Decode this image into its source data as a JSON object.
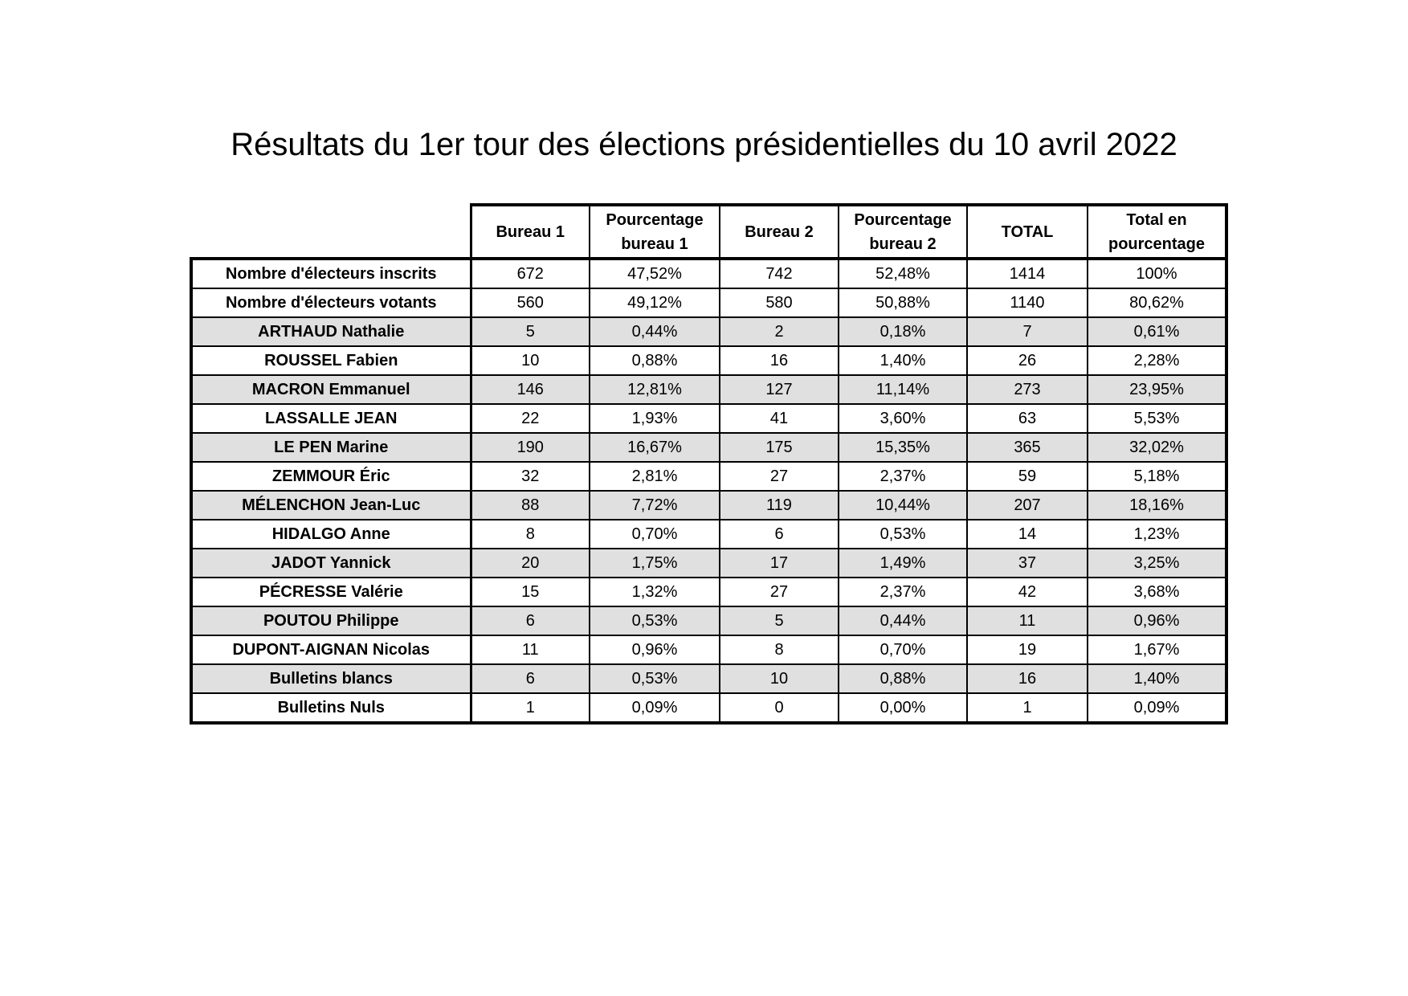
{
  "title": "Résultats du 1er tour des élections présidentielles du 10 avril 2022",
  "table": {
    "header": [
      "Bureau 1",
      "Pourcentage bureau 1",
      "Bureau 2",
      "Pourcentage bureau 2",
      "TOTAL",
      "Total en pourcentage"
    ],
    "rows": [
      [
        "Nombre d'électeurs inscrits",
        "672",
        "47,52%",
        "742",
        "52,48%",
        "1414",
        "100%"
      ],
      [
        "Nombre d'électeurs votants",
        "560",
        "49,12%",
        "580",
        "50,88%",
        "1140",
        "80,62%"
      ],
      [
        "ARTHAUD Nathalie",
        "5",
        "0,44%",
        "2",
        "0,18%",
        "7",
        "0,61%"
      ],
      [
        "ROUSSEL Fabien",
        "10",
        "0,88%",
        "16",
        "1,40%",
        "26",
        "2,28%"
      ],
      [
        "MACRON Emmanuel",
        "146",
        "12,81%",
        "127",
        "11,14%",
        "273",
        "23,95%"
      ],
      [
        "LASSALLE JEAN",
        "22",
        "1,93%",
        "41",
        "3,60%",
        "63",
        "5,53%"
      ],
      [
        "LE PEN Marine",
        "190",
        "16,67%",
        "175",
        "15,35%",
        "365",
        "32,02%"
      ],
      [
        "ZEMMOUR Éric",
        "32",
        "2,81%",
        "27",
        "2,37%",
        "59",
        "5,18%"
      ],
      [
        "MÉLENCHON Jean-Luc",
        "88",
        "7,72%",
        "119",
        "10,44%",
        "207",
        "18,16%"
      ],
      [
        "HIDALGO Anne",
        "8",
        "0,70%",
        "6",
        "0,53%",
        "14",
        "1,23%"
      ],
      [
        "JADOT Yannick",
        "20",
        "1,75%",
        "17",
        "1,49%",
        "37",
        "3,25%"
      ],
      [
        "PÉCRESSE Valérie",
        "15",
        "1,32%",
        "27",
        "2,37%",
        "42",
        "3,68%"
      ],
      [
        "POUTOU Philippe",
        "6",
        "0,53%",
        "5",
        "0,44%",
        "11",
        "0,96%"
      ],
      [
        "DUPONT-AIGNAN Nicolas",
        "11",
        "0,96%",
        "8",
        "0,70%",
        "19",
        "1,67%"
      ],
      [
        "Bulletins blancs",
        "6",
        "0,53%",
        "10",
        "0,88%",
        "16",
        "1,40%"
      ],
      [
        "Bulletins Nuls",
        "1",
        "0,09%",
        "0",
        "0,00%",
        "1",
        "0,09%"
      ]
    ]
  }
}
